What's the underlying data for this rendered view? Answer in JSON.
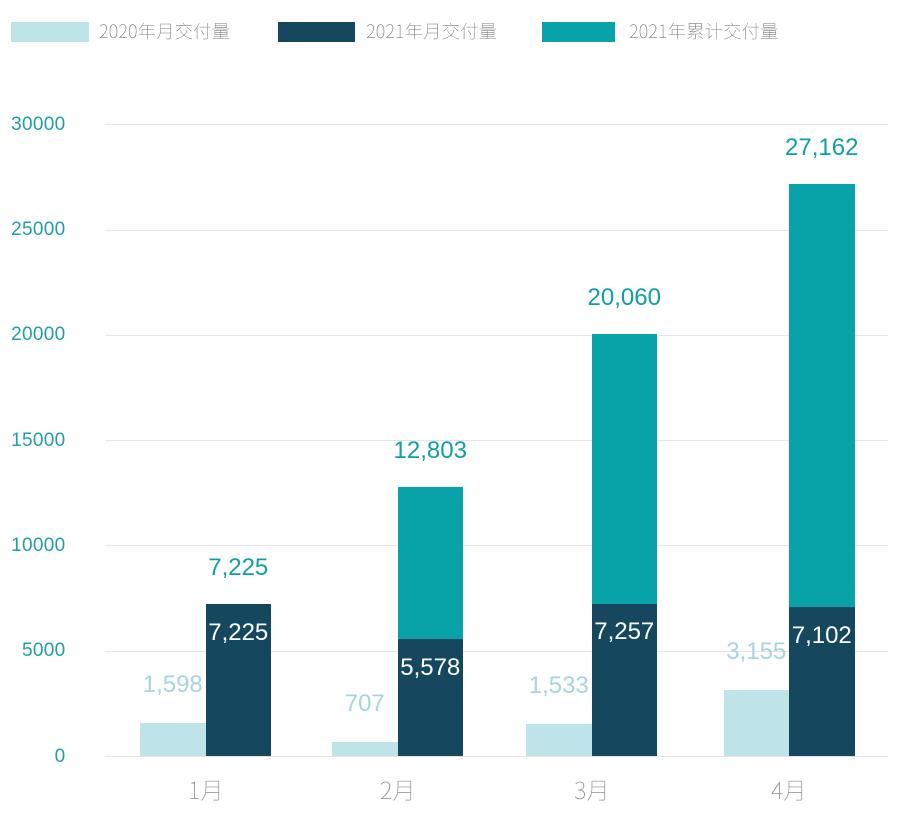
{
  "page": {
    "background": "#ffffff"
  },
  "legend": {
    "position": "top-left",
    "text_color": "#77787b",
    "items": [
      {
        "id": "2020-monthly",
        "label": "2020年月交付量",
        "swatch_color": "#bee3e8"
      },
      {
        "id": "2021-monthly",
        "label": "2021年月交付量",
        "swatch_color": "#15485f"
      },
      {
        "id": "2021-cumulative",
        "label": "2021年累计交付量",
        "swatch_color": "#07a3a8"
      }
    ]
  },
  "chart_data": {
    "type": "bar",
    "title": "",
    "categories": [
      "1月",
      "2月",
      "3月",
      "4月"
    ],
    "series": [
      {
        "name": "2020年月交付量",
        "role": "grouped-bar",
        "color": "#bee3e8",
        "values": [
          1598,
          707,
          1533,
          3155
        ],
        "data_labels": [
          "1,598",
          "707",
          "1,533",
          "3,155"
        ],
        "data_label_color": "#a7d5dc",
        "data_label_position": "above-bar"
      },
      {
        "name": "2021年月交付量",
        "role": "stacked-bar-bottom-segment",
        "color": "#15485f",
        "values": [
          7225,
          5578,
          7257,
          7102
        ],
        "data_labels": [
          "7,225",
          "5,578",
          "7,257",
          "7,102"
        ],
        "data_label_color": "#ffffff",
        "data_label_position": "inside-segment-top"
      },
      {
        "name": "2021年累计交付量",
        "role": "stacked-bar-total",
        "color": "#07a3a8",
        "values": [
          7225,
          12803,
          20060,
          27162
        ],
        "data_labels": [
          "7,225",
          "12,803",
          "20,060",
          "27,162"
        ],
        "data_label_color": "#10a0a4",
        "data_label_position": "above-bar"
      }
    ],
    "xlabel": "",
    "ylabel": "",
    "ylim": [
      0,
      30000
    ],
    "y_ticks": [
      0,
      5000,
      10000,
      15000,
      20000,
      25000,
      30000
    ],
    "y_tick_labels": [
      "0",
      "5000",
      "10000",
      "15000",
      "20000",
      "25000",
      "30000"
    ],
    "y_tick_color": "#219dab",
    "x_tick_color": "#8c8c8c",
    "grid": true,
    "gridline_color": "#e6e4e6",
    "legend_position": "top"
  }
}
